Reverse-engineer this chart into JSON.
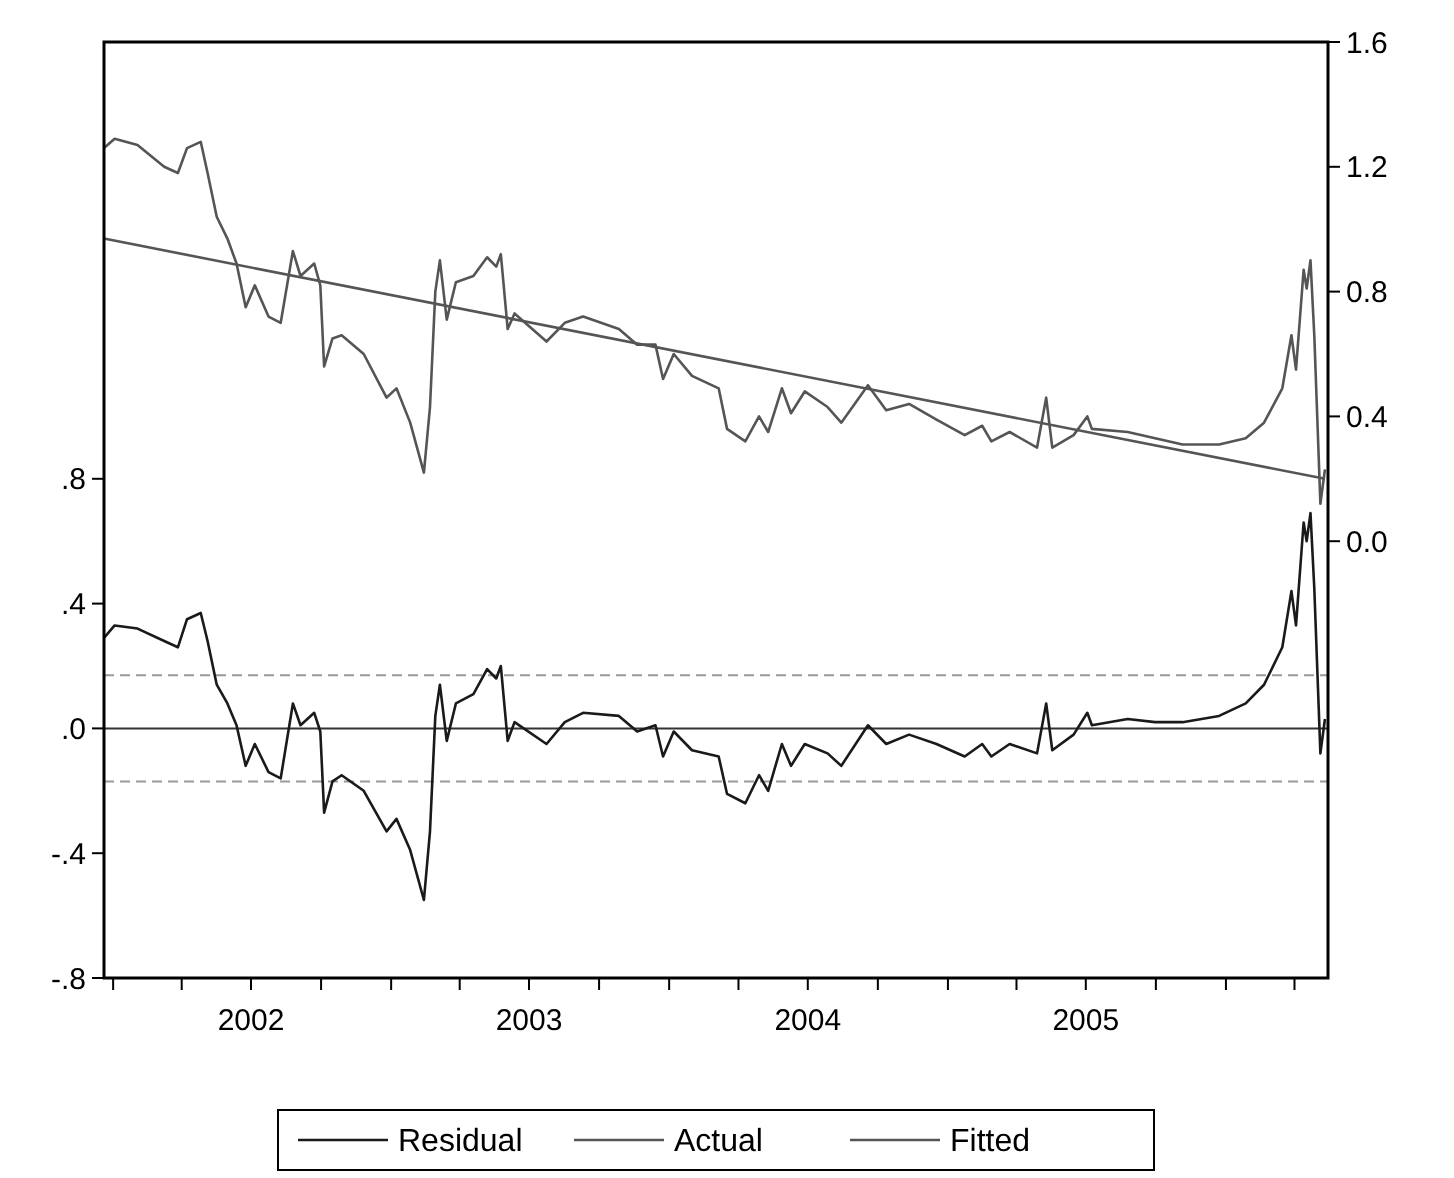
{
  "chart_data": {
    "type": "line",
    "x": [
      "2001-12-20",
      "2002-01-03",
      "2002-02-02",
      "2002-03-09",
      "2002-03-27",
      "2002-04-08",
      "2002-04-26",
      "2002-05-05",
      "2002-05-17",
      "2002-05-31",
      "2002-06-12",
      "2002-06-24",
      "2002-07-06",
      "2002-07-24",
      "2002-08-09",
      "2002-08-25",
      "2002-09-04",
      "2002-09-22",
      "2002-09-30",
      "2002-10-05",
      "2002-10-16",
      "2002-10-28",
      "2002-11-26",
      "2002-12-26",
      "2003-01-08",
      "2003-01-26",
      "2003-02-13",
      "2003-02-21",
      "2003-02-28",
      "2003-03-06",
      "2003-03-15",
      "2003-03-27",
      "2003-04-19",
      "2003-05-07",
      "2003-05-19",
      "2003-05-25",
      "2003-06-03",
      "2003-06-12",
      "2003-07-24",
      "2003-08-17",
      "2003-09-10",
      "2003-10-27",
      "2003-11-20",
      "2003-12-14",
      "2003-12-24",
      "2004-01-07",
      "2004-01-31",
      "2004-03-06",
      "2004-03-17",
      "2004-04-10",
      "2004-04-28",
      "2004-05-10",
      "2004-05-28",
      "2004-06-09",
      "2004-06-27",
      "2004-07-27",
      "2004-08-14",
      "2004-09-18",
      "2004-10-12",
      "2004-11-11",
      "2004-12-17",
      "2005-01-23",
      "2005-02-15",
      "2005-02-27",
      "2005-03-23",
      "2005-04-28",
      "2005-05-10",
      "2005-05-18",
      "2005-06-15",
      "2005-07-03",
      "2005-07-09",
      "2005-08-25",
      "2005-09-30",
      "2005-11-05",
      "2005-12-23",
      "2006-01-27",
      "2006-02-20",
      "2006-03-16",
      "2006-03-28",
      "2006-04-03",
      "2006-04-13",
      "2006-04-17",
      "2006-04-22",
      "2006-04-27",
      "2006-05-05",
      "2006-05-11"
    ],
    "series": [
      {
        "name": "Residual",
        "color": "#1a1a1a",
        "values": [
          0.29,
          0.33,
          0.32,
          0.28,
          0.26,
          0.35,
          0.37,
          0.28,
          0.14,
          0.08,
          0.01,
          -0.12,
          -0.05,
          -0.14,
          -0.16,
          0.08,
          0.01,
          0.05,
          -0.01,
          -0.27,
          -0.17,
          -0.15,
          -0.2,
          -0.33,
          -0.29,
          -0.39,
          -0.55,
          -0.33,
          0.04,
          0.14,
          -0.04,
          0.08,
          0.11,
          0.19,
          0.16,
          0.2,
          -0.04,
          0.02,
          -0.05,
          0.02,
          0.05,
          0.04,
          -0.01,
          0.01,
          -0.09,
          -0.01,
          -0.07,
          -0.09,
          -0.21,
          -0.24,
          -0.15,
          -0.2,
          -0.05,
          -0.12,
          -0.05,
          -0.08,
          -0.12,
          0.01,
          -0.05,
          -0.02,
          -0.05,
          -0.09,
          -0.05,
          -0.09,
          -0.05,
          -0.08,
          0.08,
          -0.07,
          -0.02,
          0.05,
          0.01,
          0.03,
          0.02,
          0.02,
          0.04,
          0.08,
          0.14,
          0.26,
          0.44,
          0.33,
          0.66,
          0.6,
          0.69,
          0.45,
          -0.08,
          0.03
        ]
      },
      {
        "name": "Actual",
        "color": "#555555",
        "axis": "y2",
        "values": [
          1.26,
          1.29,
          1.27,
          1.2,
          1.18,
          1.26,
          1.28,
          1.18,
          1.04,
          0.97,
          0.89,
          0.75,
          0.82,
          0.72,
          0.7,
          0.93,
          0.85,
          0.89,
          0.82,
          0.56,
          0.65,
          0.66,
          0.6,
          0.46,
          0.49,
          0.38,
          0.22,
          0.43,
          0.8,
          0.9,
          0.71,
          0.83,
          0.85,
          0.91,
          0.88,
          0.92,
          0.68,
          0.73,
          0.64,
          0.7,
          0.72,
          0.68,
          0.63,
          0.63,
          0.52,
          0.6,
          0.53,
          0.49,
          0.36,
          0.32,
          0.4,
          0.35,
          0.49,
          0.41,
          0.48,
          0.43,
          0.38,
          0.5,
          0.42,
          0.44,
          0.39,
          0.34,
          0.37,
          0.32,
          0.35,
          0.3,
          0.46,
          0.3,
          0.34,
          0.4,
          0.36,
          0.35,
          0.33,
          0.31,
          0.31,
          0.33,
          0.38,
          0.49,
          0.66,
          0.55,
          0.87,
          0.81,
          0.9,
          0.66,
          0.12,
          0.23
        ]
      },
      {
        "name": "Fitted",
        "color": "#555555",
        "axis": "y2",
        "x": [
          "2001-12-20",
          "2006-05-11"
        ],
        "values": [
          0.97,
          0.2
        ]
      }
    ],
    "xlim": [
      "2001-12-20",
      "2006-05-15"
    ],
    "xticks": [
      {
        "value": "2002-01-01",
        "label": null
      },
      {
        "value": "2002-04-01",
        "label": null
      },
      {
        "value": "2002-07-01",
        "label": "2002"
      },
      {
        "value": "2002-10-01",
        "label": null
      },
      {
        "value": "2003-01-01",
        "label": null
      },
      {
        "value": "2003-04-01",
        "label": null
      },
      {
        "value": "2003-07-01",
        "label": "2003"
      },
      {
        "value": "2003-10-01",
        "label": null
      },
      {
        "value": "2004-01-01",
        "label": null
      },
      {
        "value": "2004-04-01",
        "label": null
      },
      {
        "value": "2004-07-01",
        "label": "2004"
      },
      {
        "value": "2004-10-01",
        "label": null
      },
      {
        "value": "2005-01-01",
        "label": null
      },
      {
        "value": "2005-04-01",
        "label": null
      },
      {
        "value": "2005-07-01",
        "label": "2005"
      },
      {
        "value": "2005-10-01",
        "label": null
      },
      {
        "value": "2006-01-01",
        "label": null
      },
      {
        "value": "2006-04-01",
        "label": null
      }
    ],
    "ylim": [
      -0.8,
      2.2
    ],
    "yticks": [
      {
        "value": -0.8,
        "label": "-.8"
      },
      {
        "value": -0.4,
        "label": "-.4"
      },
      {
        "value": 0,
        "label": ".0"
      },
      {
        "value": 0.4,
        "label": ".4"
      },
      {
        "value": 0.8,
        "label": ".8"
      }
    ],
    "y2lim": [
      -1.4,
      1.6
    ],
    "y2ticks": [
      {
        "value": 0,
        "label": "0.0"
      },
      {
        "value": 0.4,
        "label": "0.4"
      },
      {
        "value": 0.8,
        "label": "0.8"
      },
      {
        "value": 1.2,
        "label": "1.2"
      },
      {
        "value": 1.6,
        "label": "1.6"
      }
    ],
    "ref_lines": [
      {
        "axis": "y",
        "value": 0,
        "color": "#333333",
        "line_style": "solid"
      },
      {
        "axis": "y",
        "value": 0.17,
        "color": "#999999",
        "line_style": "dashed"
      },
      {
        "axis": "y",
        "value": -0.17,
        "color": "#999999",
        "line_style": "dashed"
      }
    ],
    "legend": "bottom",
    "grid": false
  }
}
